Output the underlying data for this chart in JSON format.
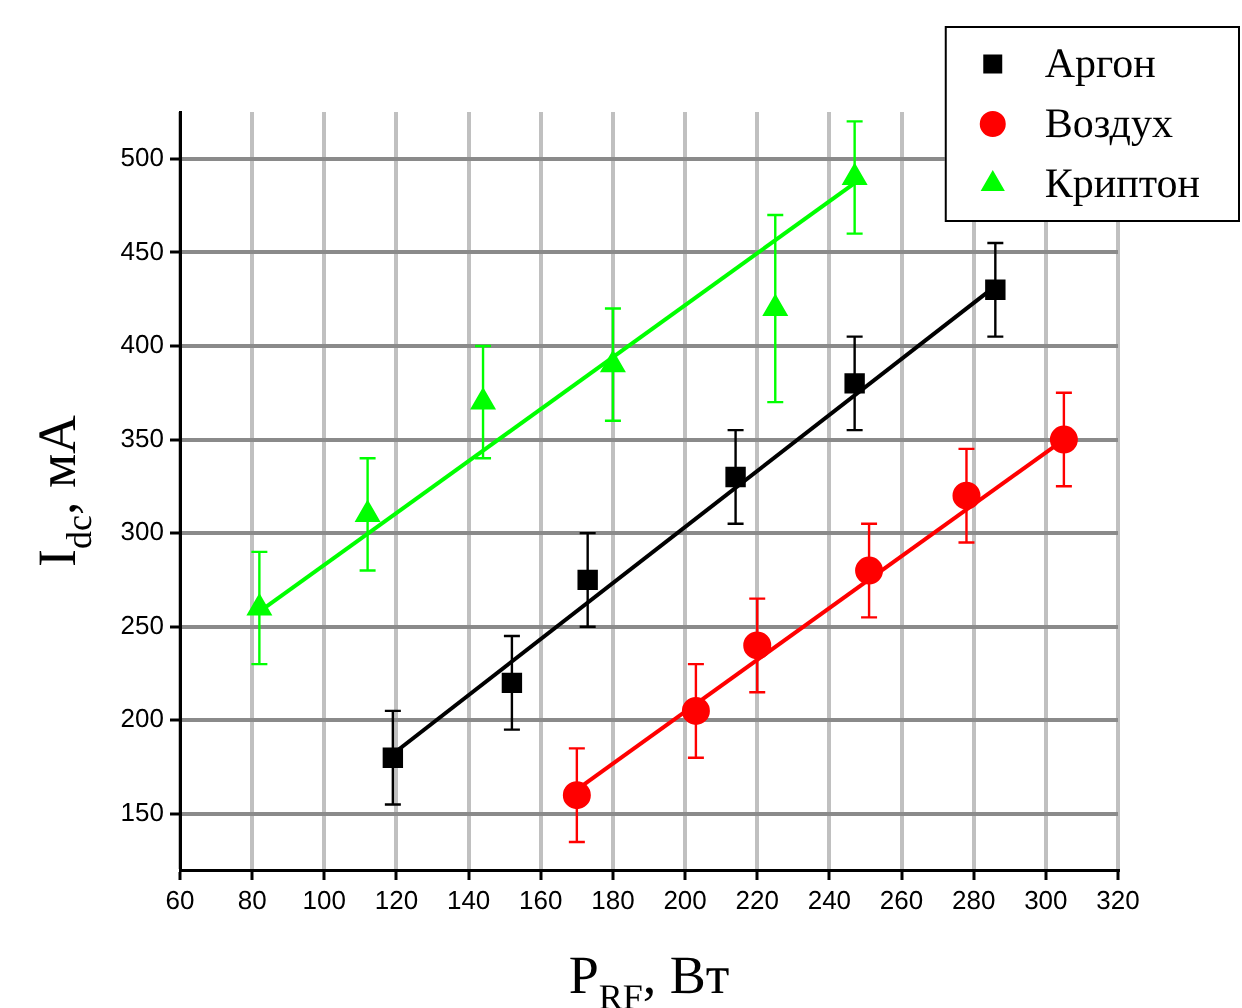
{
  "chart_data": {
    "type": "scatter",
    "xlabel": "P$_{RF}$, Вт",
    "ylabel": "I$_{dc}$, мА",
    "xlim": [
      60,
      320
    ],
    "xticks": [
      60,
      80,
      100,
      120,
      140,
      160,
      180,
      200,
      220,
      240,
      260,
      280,
      300,
      320
    ],
    "ylim": [
      120,
      525
    ],
    "yticks": [
      150,
      200,
      250,
      300,
      350,
      400,
      450,
      500
    ],
    "grid": true,
    "legend": "top right",
    "series": [
      {
        "name": "Аргон",
        "color": "#000000",
        "marker": "square",
        "x": [
          119,
          152,
          173,
          214,
          247,
          286
        ],
        "values": [
          180,
          220,
          275,
          330,
          380,
          430
        ],
        "errors": [
          25,
          25,
          25,
          25,
          25,
          25
        ]
      },
      {
        "name": "Воздух",
        "color": "#ff0000",
        "marker": "circle",
        "x": [
          170,
          203,
          220,
          251,
          278,
          305
        ],
        "values": [
          160,
          205,
          240,
          280,
          320,
          350
        ],
        "errors": [
          25,
          25,
          25,
          25,
          25,
          25
        ]
      },
      {
        "name": "Криптон",
        "color": "#00ff00",
        "marker": "triangle",
        "x": [
          82,
          112,
          144,
          180,
          225,
          247
        ],
        "values": [
          260,
          310,
          370,
          390,
          420,
          490
        ],
        "errors": [
          30,
          30,
          30,
          30,
          50,
          30
        ]
      },
      {
        "type": "line",
        "color": "#000000",
        "marker": "none",
        "x": [
          119,
          286
        ],
        "values": [
          182,
          432
        ]
      },
      {
        "type": "line",
        "color": "#ff0000",
        "marker": "none",
        "x": [
          170,
          305
        ],
        "values": [
          163,
          350
        ]
      },
      {
        "type": "line",
        "color": "#00ff00",
        "marker": "none",
        "x": [
          82,
          247
        ],
        "values": [
          258,
          487
        ]
      }
    ]
  }
}
